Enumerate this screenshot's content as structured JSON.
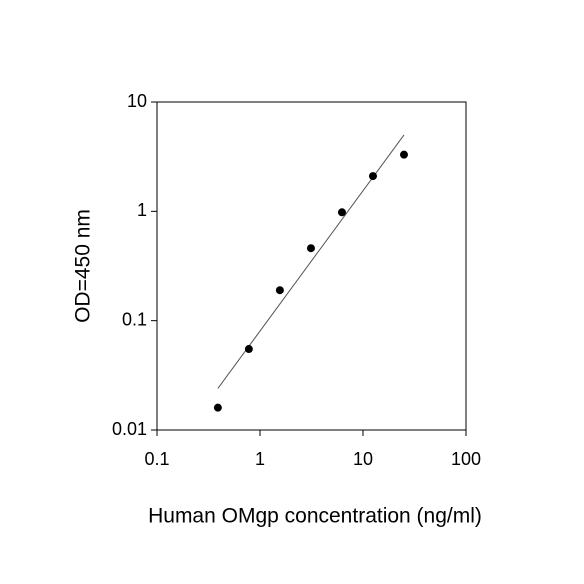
{
  "chart_data": {
    "type": "scatter",
    "x_label": "Human OMgp concentration (ng/ml)",
    "y_label": "OD=450 nm",
    "x": [
      0.39,
      0.78,
      1.56,
      3.125,
      6.25,
      12.5,
      25
    ],
    "values": [
      0.016,
      0.055,
      0.19,
      0.46,
      0.98,
      2.1,
      3.3
    ],
    "color": "#000000",
    "fit_line": {
      "x": [
        0.39,
        25
      ],
      "values": [
        0.024,
        5.0
      ],
      "color": "#555555"
    },
    "x_log": true,
    "y_log": true,
    "xlim": [
      0.1,
      100
    ],
    "xticks": [
      0.1,
      1,
      10,
      100
    ],
    "ylim": [
      0.01,
      10
    ],
    "yticks": [
      0.01,
      0.1,
      1,
      10
    ],
    "grid": false
  }
}
